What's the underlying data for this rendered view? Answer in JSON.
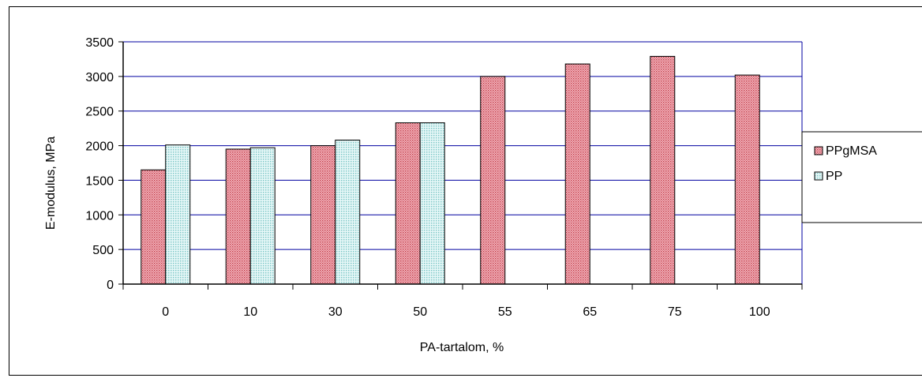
{
  "chart_data": {
    "type": "bar",
    "title": "",
    "xlabel": "PA-tartalom, %",
    "ylabel": "E-modulus, MPa",
    "categories": [
      "0",
      "10",
      "30",
      "50",
      "55",
      "65",
      "75",
      "100"
    ],
    "ylim": [
      0,
      3500
    ],
    "yticks": [
      0,
      500,
      1000,
      1500,
      2000,
      2500,
      3000,
      3500
    ],
    "grid": true,
    "legend_position": "right",
    "series": [
      {
        "name": "PPgMSA",
        "values": [
          1650,
          1950,
          2000,
          2330,
          3000,
          3180,
          3290,
          3020
        ],
        "color": "#e8a0a8",
        "pattern": "dotted-red"
      },
      {
        "name": "PP",
        "values": [
          2010,
          1970,
          2080,
          2330,
          null,
          null,
          null,
          null
        ],
        "color": "#cdeef0",
        "pattern": "dotted-teal"
      }
    ],
    "gridline_color": "#0000a0"
  }
}
